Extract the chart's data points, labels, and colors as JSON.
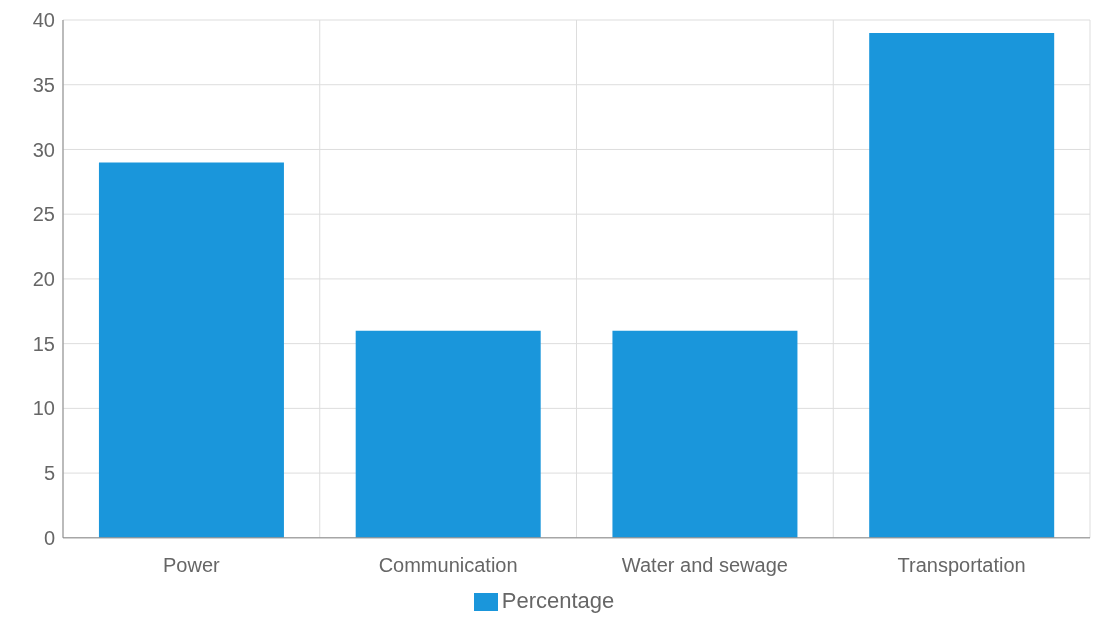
{
  "chart_data": {
    "type": "bar",
    "categories": [
      "Power",
      "Communication",
      "Water and sewage",
      "Transportation"
    ],
    "series": [
      {
        "name": "Percentage",
        "color": "#1a96db",
        "values": [
          29,
          16,
          16,
          39
        ]
      }
    ],
    "ylim": [
      0,
      40
    ],
    "yticks": [
      0,
      5,
      10,
      15,
      20,
      25,
      30,
      35,
      40
    ],
    "grid": true,
    "legend": "bottom"
  }
}
